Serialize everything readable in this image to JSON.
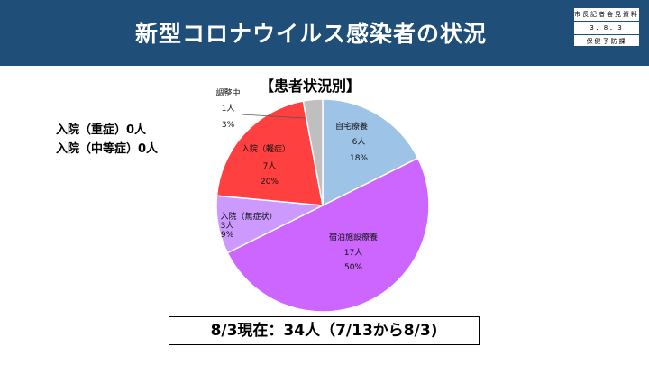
{
  "header": {
    "title": "新型コロナウイルス感染者の状況"
  },
  "stamp": {
    "line1": "市長記者会見資料",
    "line2": "3．8．3",
    "line3": "保健予防課"
  },
  "notes": [
    {
      "text": "入院（重症）0人"
    },
    {
      "text": "入院（中等症）0人"
    }
  ],
  "footer": {
    "text": "8/3現在：34人（7/13から8/3)"
  },
  "colors": {
    "header_bg": "#1f4e79",
    "home": "#9dc3e6",
    "lodging": "#cc66ff",
    "asymptomatic": "#cc99ff",
    "mild": "#ff4040",
    "adjusting": "#bfbfbf"
  },
  "chart_data": {
    "type": "pie",
    "title": "【患者状況別】",
    "start_angle_deg": 0,
    "slices": [
      {
        "label": "自宅療養",
        "count": "6人",
        "percent_label": "18%",
        "value": 6,
        "color": "#9dc3e6"
      },
      {
        "label": "宿泊施設療養",
        "count": "17人",
        "percent_label": "50%",
        "value": 17,
        "color": "#cc66ff"
      },
      {
        "label": "入院（無症状）",
        "count": "3人",
        "percent_label": "9%",
        "value": 3,
        "color": "#cc99ff"
      },
      {
        "label": "入院（軽症）",
        "count": "7人",
        "percent_label": "20%",
        "value": 7,
        "color": "#ff4040"
      },
      {
        "label": "調整中",
        "count": "1人",
        "percent_label": "3%",
        "value": 1,
        "color": "#bfbfbf"
      }
    ]
  }
}
